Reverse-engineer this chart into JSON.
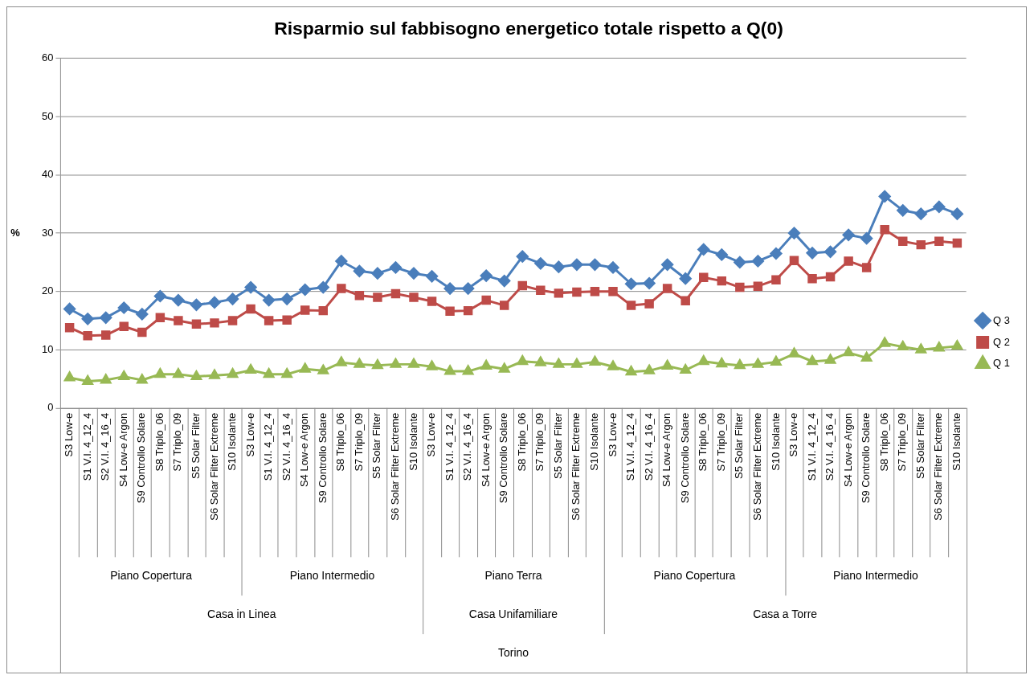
{
  "chart_data": {
    "type": "line",
    "title": "Risparmio sul fabbisogno energetico totale rispetto a Q(0)",
    "ylabel": "%",
    "categories": [
      "S3 Low-e",
      "S1 V.I. 4_12_4",
      "S2 V.I. 4_16_4",
      "S4 Low-e Argon",
      "S9 Controllo Solare",
      "S8 Triplo_06",
      "S7 Triplo_09",
      "S5 Solar Filter",
      "S6 Solar Filter Extreme",
      "S10 Isolante",
      "S3 Low-e",
      "S1 V.I. 4_12_4",
      "S2 V.I. 4_16_4",
      "S4 Low-e Argon",
      "S9 Controllo Solare",
      "S8 Triplo_06",
      "S7 Triplo_09",
      "S5 Solar Filter",
      "S6 Solar Filter Extreme",
      "S10 Isolante",
      "S3 Low-e",
      "S1 V.I. 4_12_4",
      "S2 V.I. 4_16_4",
      "S4 Low-e Argon",
      "S9 Controllo Solare",
      "S8 Triplo_06",
      "S7 Triplo_09",
      "S5 Solar Filter",
      "S6 Solar Filter Extreme",
      "S10 Isolante",
      "S3 Low-e",
      "S1 V.I. 4_12_4",
      "S2 V.I. 4_16_4",
      "S4 Low-e Argon",
      "S9 Controllo Solare",
      "S8 Triplo_06",
      "S7 Triplo_09",
      "S5 Solar Filter",
      "S6 Solar Filter Extreme",
      "S10 Isolante",
      "S3 Low-e",
      "S1 V.I. 4_12_4",
      "S2 V.I. 4_16_4",
      "S4 Low-e Argon",
      "S9 Controllo Solare",
      "S8 Triplo_06",
      "S7 Triplo_09",
      "S5 Solar Filter",
      "S6 Solar Filter Extreme",
      "S10 Isolante"
    ],
    "series": [
      {
        "name": "Q 3",
        "color": "#4a7ebb",
        "marker": "diamond",
        "values": [
          17.0,
          15.3,
          15.5,
          17.2,
          16.1,
          19.2,
          18.5,
          17.7,
          18.1,
          18.7,
          20.7,
          18.5,
          18.7,
          20.3,
          20.7,
          25.2,
          23.5,
          23.1,
          24.1,
          23.1,
          22.6,
          20.5,
          20.5,
          22.7,
          21.8,
          26.0,
          24.8,
          24.2,
          24.6,
          24.6,
          24.1,
          21.3,
          21.4,
          24.6,
          22.2,
          27.2,
          26.3,
          25.0,
          25.2,
          26.5,
          30.0,
          26.6,
          26.8,
          29.7,
          29.1,
          36.3,
          33.9,
          33.3,
          34.5,
          33.3
        ]
      },
      {
        "name": "Q 2",
        "color": "#be4b48",
        "marker": "square",
        "values": [
          13.8,
          12.4,
          12.5,
          14.0,
          13.0,
          15.5,
          15.0,
          14.4,
          14.6,
          15.0,
          17.0,
          15.0,
          15.1,
          16.8,
          16.7,
          20.5,
          19.3,
          19.0,
          19.6,
          19.0,
          18.3,
          16.6,
          16.7,
          18.5,
          17.6,
          21.0,
          20.2,
          19.7,
          19.9,
          20.0,
          20.0,
          17.6,
          17.9,
          20.5,
          18.4,
          22.4,
          21.8,
          20.7,
          20.9,
          22.0,
          25.3,
          22.2,
          22.5,
          25.2,
          24.1,
          30.6,
          28.6,
          28.0,
          28.6,
          28.3
        ]
      },
      {
        "name": "Q 1",
        "color": "#98b954",
        "marker": "triangle",
        "values": [
          5.2,
          4.6,
          4.8,
          5.4,
          4.8,
          5.8,
          5.8,
          5.4,
          5.6,
          5.8,
          6.5,
          5.8,
          5.8,
          6.7,
          6.4,
          7.8,
          7.5,
          7.3,
          7.5,
          7.5,
          7.1,
          6.3,
          6.3,
          7.2,
          6.7,
          8.0,
          7.8,
          7.5,
          7.5,
          7.9,
          7.1,
          6.2,
          6.4,
          7.2,
          6.5,
          8.0,
          7.6,
          7.3,
          7.5,
          7.9,
          9.3,
          8.0,
          8.2,
          9.5,
          8.6,
          11.1,
          10.5,
          10.0,
          10.3,
          10.6
        ]
      }
    ],
    "ylim": [
      0,
      60
    ],
    "yticks": [
      0,
      10,
      20,
      30,
      40,
      50,
      60
    ],
    "grid": "y",
    "legend": "right",
    "line_style": "solid",
    "annotations": [
      "Piano Copertura",
      "Piano Intermedio",
      "Piano Terra",
      "Piano Copertura",
      "Piano Intermedio",
      "Casa in Linea",
      "Casa Unifamiliare",
      "Casa a Torre",
      "Torino"
    ]
  }
}
